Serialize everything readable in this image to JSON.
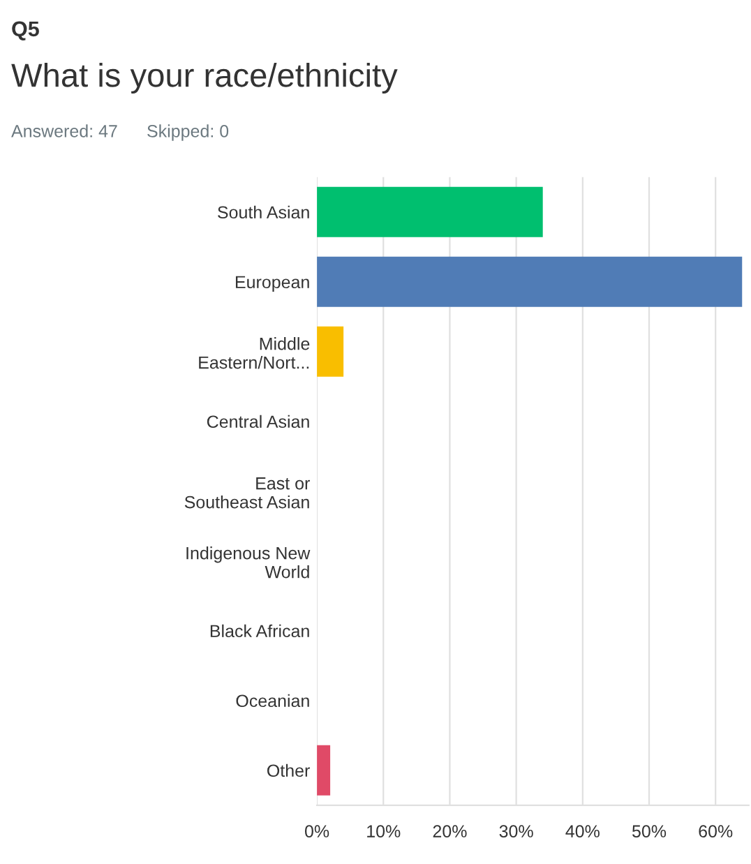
{
  "chart_data": {
    "type": "bar",
    "orientation": "horizontal",
    "subtitle": "Q5",
    "title": "What is your race/ethnicity",
    "annotations": [
      "Answered: 47",
      "Skipped: 0"
    ],
    "categories": [
      "South Asian",
      "European",
      "Middle\nEastern/Nort...",
      "Central Asian",
      "East or\nSoutheast Asian",
      "Indigenous New\nWorld",
      "Black African",
      "Oceanian",
      "Other"
    ],
    "values": [
      34,
      64,
      4,
      0,
      0,
      0,
      0,
      0,
      2
    ],
    "colors": [
      "#00bf6f",
      "#507cb6",
      "#f9be00",
      "#6bc8cd",
      "#957fcc",
      "#f05b24",
      "#8c4f9f",
      "#0d9a8b",
      "#e04a67"
    ],
    "xlim": [
      0,
      65
    ],
    "xticks": [
      {
        "value": 0,
        "label": "0%"
      },
      {
        "value": 10,
        "label": "10%"
      },
      {
        "value": 20,
        "label": "20%"
      },
      {
        "value": 30,
        "label": "30%"
      },
      {
        "value": 40,
        "label": "40%"
      },
      {
        "value": 50,
        "label": "50%"
      },
      {
        "value": 60,
        "label": "60%"
      }
    ],
    "grid": "x",
    "legend": false
  }
}
